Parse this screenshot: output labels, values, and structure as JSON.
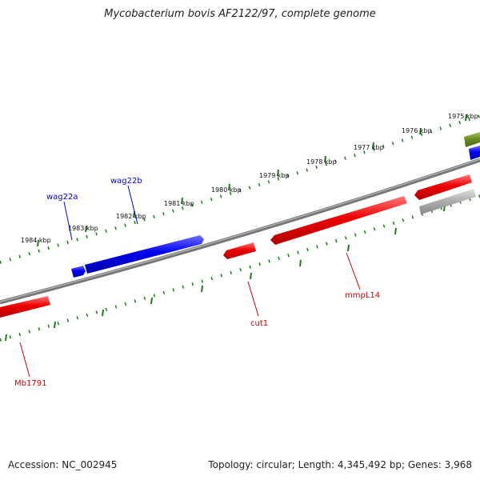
{
  "title": "Mycobacterium bovis AF2122/97, complete genome",
  "footer": {
    "accession": "Accession: NC_002945",
    "stats": "Topology: circular; Length: 4,345,492 bp; Genes: 3,968"
  },
  "colors": {
    "backbone": "#777777",
    "ticks": "#1f7a1f",
    "forward_gene": "#0000ee",
    "reverse_gene": "#ee0000",
    "olive_gene": "#6b8e23",
    "gray_gene": "#aaaaaa"
  },
  "scale_labels": [
    "1975 kbp",
    "1976 kbp",
    "1977 kbp",
    "1978 kbp",
    "1979 kbp",
    "1980 kbp",
    "1981 kbp",
    "1982 kbp",
    "1983 kbp",
    "1984 kbp"
  ],
  "gene_labels": {
    "wag22a": "wag22a",
    "wag22b": "wag22b",
    "cut1": "cut1",
    "mmpL14": "mmpL14",
    "mb1791": "Mb1791"
  }
}
